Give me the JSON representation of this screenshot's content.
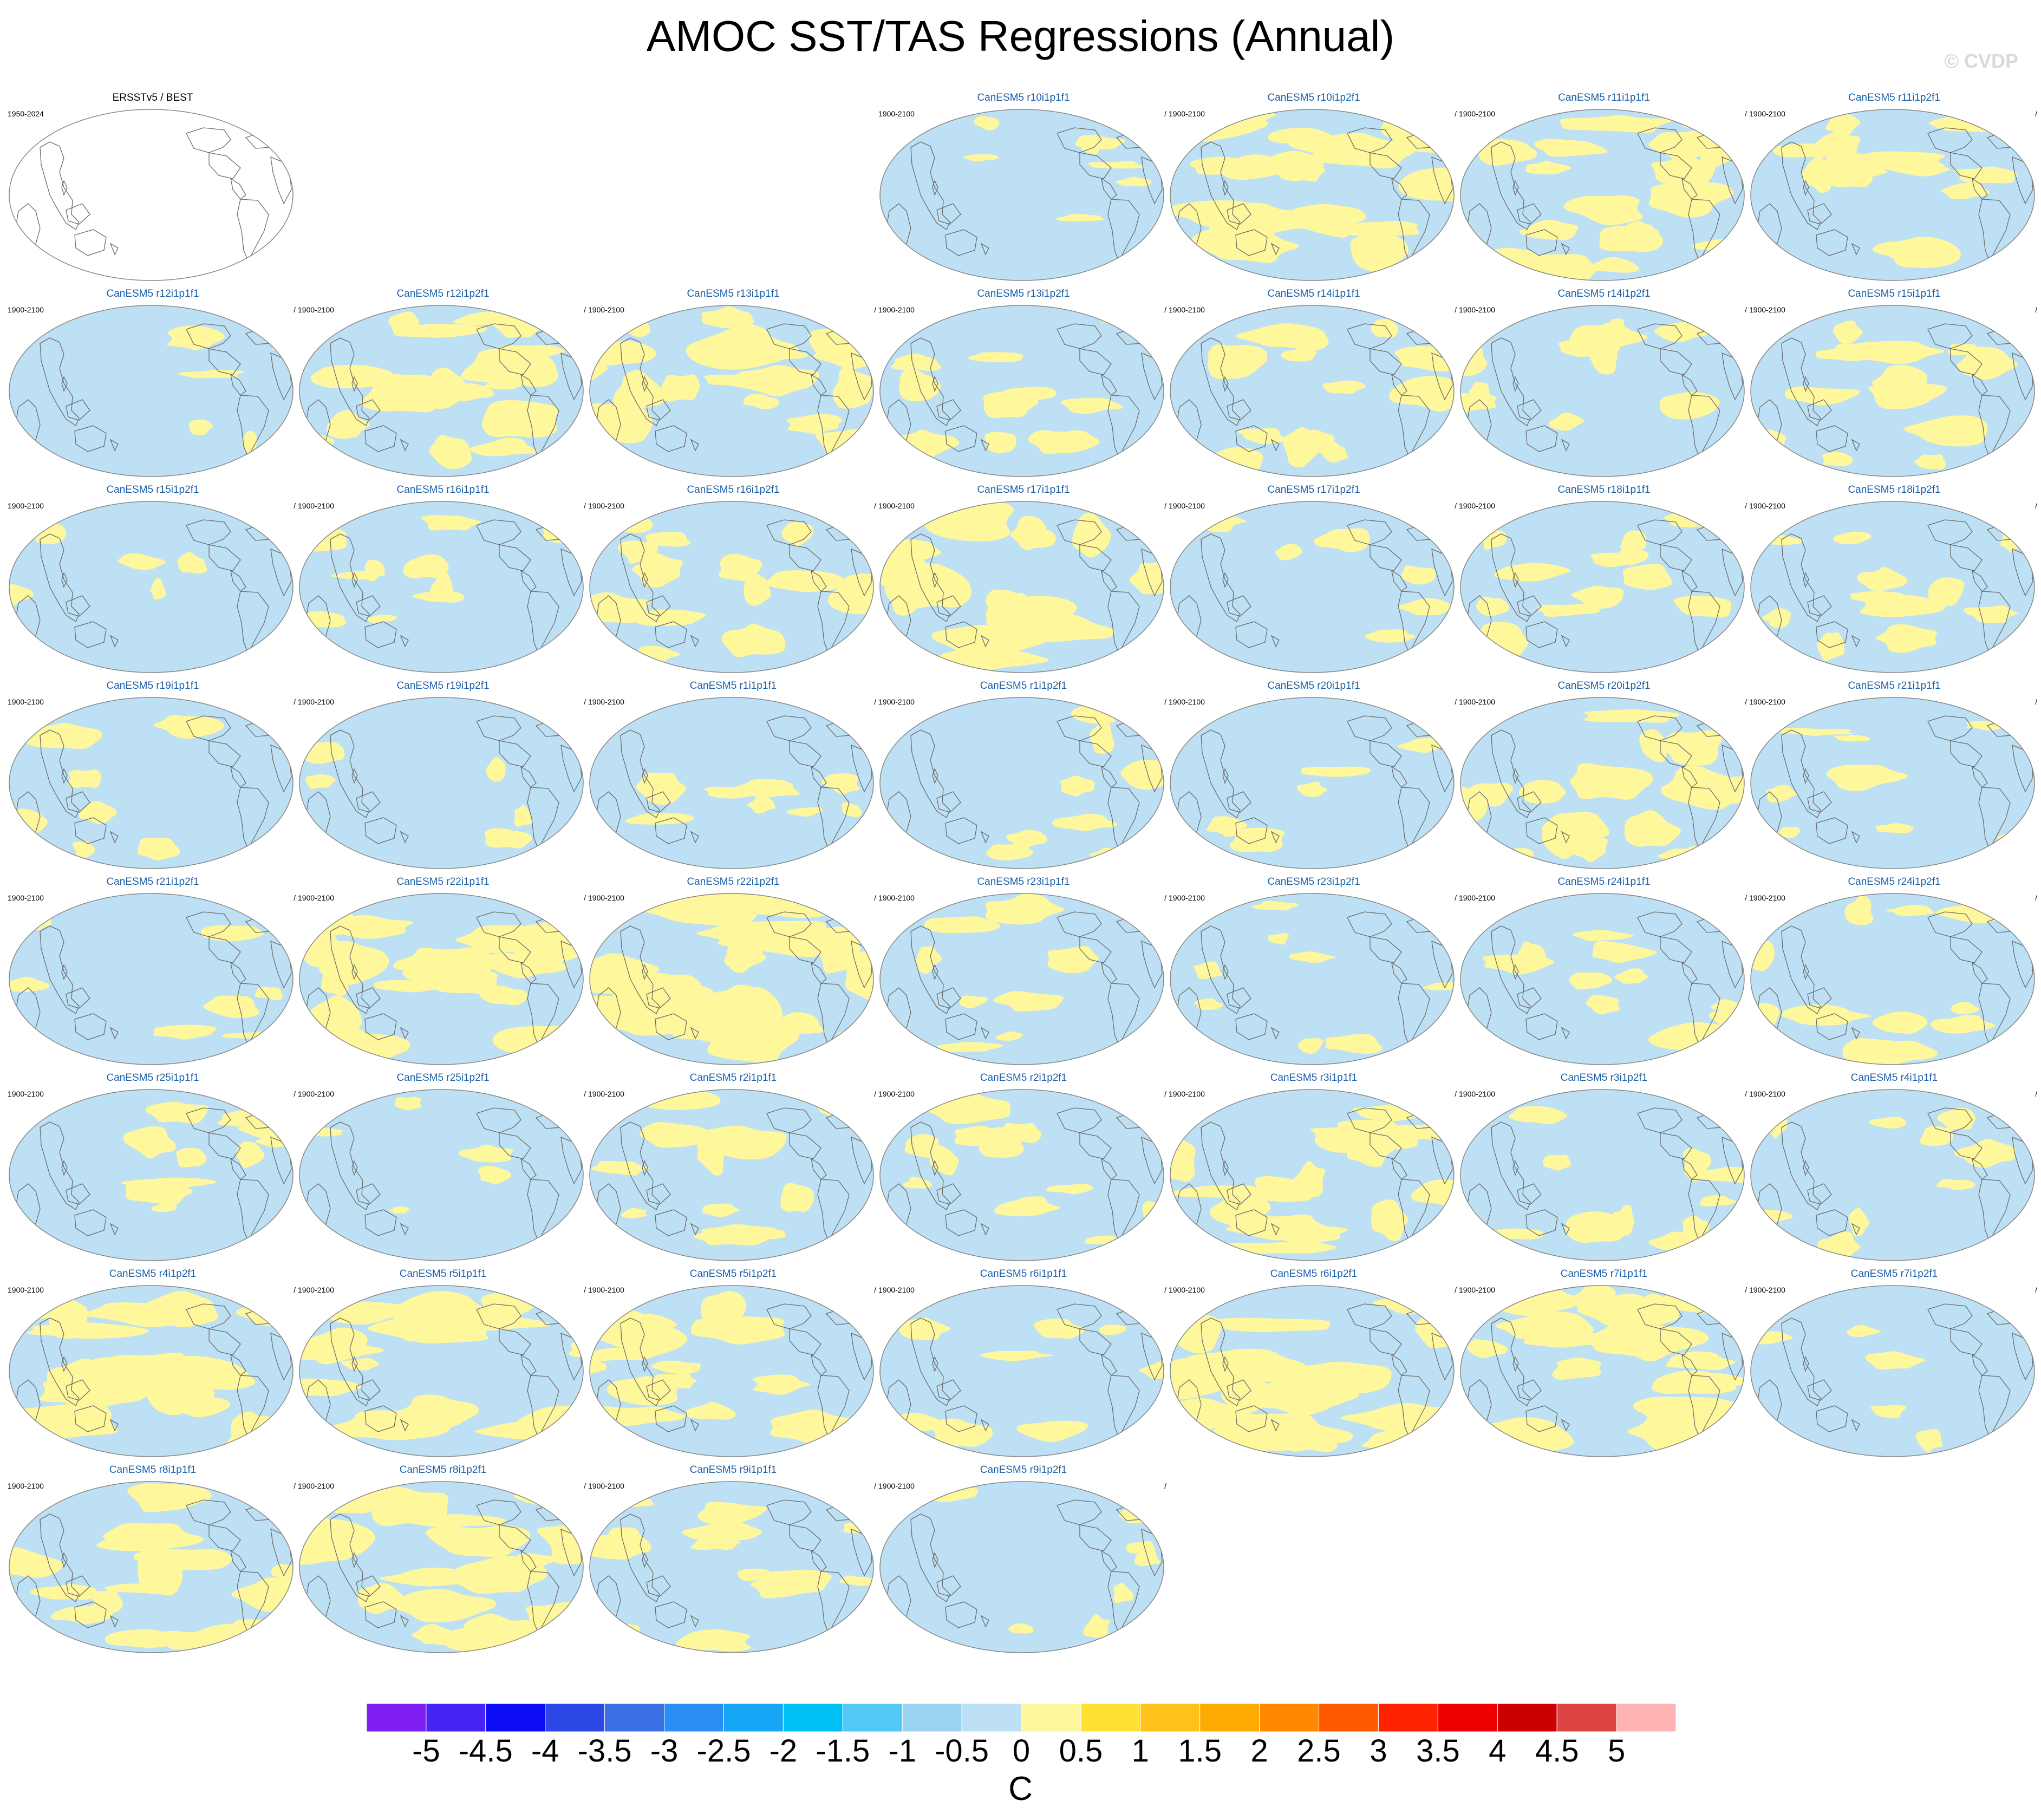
{
  "title": "AMOC SST/TAS Regressions (Annual)",
  "copyright": "© CVDP",
  "colors": {
    "model_title": "#1a5fa8",
    "obs_title": "#000000",
    "ocean_negative": "#bde0f5",
    "ocean_positive": "#fff79c",
    "coast": "#6a6a6a"
  },
  "observations": {
    "title": "ERSSTv5 / BEST",
    "years": "1950-2024"
  },
  "panels": [
    {
      "title": "CanESM5 r10i1p1f1",
      "years": "1900-2100",
      "slash": "/",
      "warm_fraction": 0.1
    },
    {
      "title": "CanESM5 r10i1p2f1",
      "years": "1900-2100",
      "slash": "/",
      "warm_fraction": 0.55
    },
    {
      "title": "CanESM5 r11i1p1f1",
      "years": "1900-2100",
      "slash": "/",
      "warm_fraction": 0.55
    },
    {
      "title": "CanESM5 r11i1p2f1",
      "years": "1900-2100",
      "slash": "/",
      "warm_fraction": 0.35
    },
    {
      "title": "CanESM5 r12i1p1f1",
      "years": "1900-2100",
      "slash": "/",
      "warm_fraction": 0.04
    },
    {
      "title": "CanESM5 r12i1p2f1",
      "years": "1900-2100",
      "slash": "/",
      "warm_fraction": 0.55
    },
    {
      "title": "CanESM5 r13i1p1f1",
      "years": "1900-2100",
      "slash": "/",
      "warm_fraction": 0.55
    },
    {
      "title": "CanESM5 r13i1p2f1",
      "years": "1900-2100",
      "slash": "/",
      "warm_fraction": 0.25
    },
    {
      "title": "CanESM5 r14i1p1f1",
      "years": "1900-2100",
      "slash": "/",
      "warm_fraction": 0.4
    },
    {
      "title": "CanESM5 r14i1p2f1",
      "years": "1900-2100",
      "slash": "/",
      "warm_fraction": 0.25
    },
    {
      "title": "CanESM5 r15i1p1f1",
      "years": "1900-2100",
      "slash": "/",
      "warm_fraction": 0.4
    },
    {
      "title": "CanESM5 r15i1p2f1",
      "years": "1900-2100",
      "slash": "/",
      "warm_fraction": 0.04
    },
    {
      "title": "CanESM5 r16i1p1f1",
      "years": "1900-2100",
      "slash": "/",
      "warm_fraction": 0.25
    },
    {
      "title": "CanESM5 r16i1p2f1",
      "years": "1900-2100",
      "slash": "/",
      "warm_fraction": 0.4
    },
    {
      "title": "CanESM5 r17i1p1f1",
      "years": "1900-2100",
      "slash": "/",
      "warm_fraction": 0.6
    },
    {
      "title": "CanESM5 r17i1p2f1",
      "years": "1900-2100",
      "slash": "/",
      "warm_fraction": 0.08
    },
    {
      "title": "CanESM5 r18i1p1f1",
      "years": "1900-2100",
      "slash": "/",
      "warm_fraction": 0.35
    },
    {
      "title": "CanESM5 r18i1p2f1",
      "years": "1900-2100",
      "slash": "/",
      "warm_fraction": 0.3
    },
    {
      "title": "CanESM5 r19i1p1f1",
      "years": "1900-2100",
      "slash": "/",
      "warm_fraction": 0.15
    },
    {
      "title": "CanESM5 r19i1p2f1",
      "years": "1900-2100",
      "slash": "/",
      "warm_fraction": 0.04
    },
    {
      "title": "CanESM5 r1i1p1f1",
      "years": "1900-2100",
      "slash": "/",
      "warm_fraction": 0.2
    },
    {
      "title": "CanESM5 r1i1p2f1",
      "years": "1900-2100",
      "slash": "/",
      "warm_fraction": 0.2
    },
    {
      "title": "CanESM5 r20i1p1f1",
      "years": "1900-2100",
      "slash": "/",
      "warm_fraction": 0.08
    },
    {
      "title": "CanESM5 r20i1p2f1",
      "years": "1900-2100",
      "slash": "/",
      "warm_fraction": 0.5
    },
    {
      "title": "CanESM5 r21i1p1f1",
      "years": "1900-2100",
      "slash": "/",
      "warm_fraction": 0.2
    },
    {
      "title": "CanESM5 r21i1p2f1",
      "years": "1900-2100",
      "slash": "/",
      "warm_fraction": 0.12
    },
    {
      "title": "CanESM5 r22i1p1f1",
      "years": "1900-2100",
      "slash": "/",
      "warm_fraction": 0.55
    },
    {
      "title": "CanESM5 r22i1p2f1",
      "years": "1900-2100",
      "slash": "/",
      "warm_fraction": 0.85
    },
    {
      "title": "CanESM5 r23i1p1f1",
      "years": "1900-2100",
      "slash": "/",
      "warm_fraction": 0.2
    },
    {
      "title": "CanESM5 r23i1p2f1",
      "years": "1900-2100",
      "slash": "/",
      "warm_fraction": 0.15
    },
    {
      "title": "CanESM5 r24i1p1f1",
      "years": "1900-2100",
      "slash": "/",
      "warm_fraction": 0.3
    },
    {
      "title": "CanESM5 r24i1p2f1",
      "years": "1900-2100",
      "slash": "/",
      "warm_fraction": 0.3
    },
    {
      "title": "CanESM5 r25i1p1f1",
      "years": "1900-2100",
      "slash": "/",
      "warm_fraction": 0.25
    },
    {
      "title": "CanESM5 r25i1p2f1",
      "years": "1900-2100",
      "slash": "/",
      "warm_fraction": 0.04
    },
    {
      "title": "CanESM5 r2i1p1f1",
      "years": "1900-2100",
      "slash": "/",
      "warm_fraction": 0.3
    },
    {
      "title": "CanESM5 r2i1p2f1",
      "years": "1900-2100",
      "slash": "/",
      "warm_fraction": 0.25
    },
    {
      "title": "CanESM5 r3i1p1f1",
      "years": "1900-2100",
      "slash": "/",
      "warm_fraction": 0.55
    },
    {
      "title": "CanESM5 r3i1p2f1",
      "years": "1900-2100",
      "slash": "/",
      "warm_fraction": 0.25
    },
    {
      "title": "CanESM5 r4i1p1f1",
      "years": "1900-2100",
      "slash": "/",
      "warm_fraction": 0.2
    },
    {
      "title": "CanESM5 r4i1p2f1",
      "years": "1900-2100",
      "slash": "/",
      "warm_fraction": 0.6
    },
    {
      "title": "CanESM5 r5i1p1f1",
      "years": "1900-2100",
      "slash": "/",
      "warm_fraction": 0.55
    },
    {
      "title": "CanESM5 r5i1p2f1",
      "years": "1900-2100",
      "slash": "/",
      "warm_fraction": 0.45
    },
    {
      "title": "CanESM5 r6i1p1f1",
      "years": "1900-2100",
      "slash": "/",
      "warm_fraction": 0.15
    },
    {
      "title": "CanESM5 r6i1p2f1",
      "years": "1900-2100",
      "slash": "/",
      "warm_fraction": 0.6
    },
    {
      "title": "CanESM5 r7i1p1f1",
      "years": "1900-2100",
      "slash": "/",
      "warm_fraction": 0.6
    },
    {
      "title": "CanESM5 r7i1p2f1",
      "years": "1900-2100",
      "slash": "/",
      "warm_fraction": 0.12
    },
    {
      "title": "CanESM5 r8i1p1f1",
      "years": "1900-2100",
      "slash": "/",
      "warm_fraction": 0.55
    },
    {
      "title": "CanESM5 r8i1p2f1",
      "years": "1900-2100",
      "slash": "/",
      "warm_fraction": 0.6
    },
    {
      "title": "CanESM5 r9i1p1f1",
      "years": "1900-2100",
      "slash": "/",
      "warm_fraction": 0.3
    },
    {
      "title": "CanESM5 r9i1p2f1",
      "years": "1900-2100",
      "slash": "/",
      "warm_fraction": 0.1
    }
  ],
  "colorbar": {
    "units": "C",
    "labels": [
      "-5",
      "-4.5",
      "-4",
      "-3.5",
      "-3",
      "-2.5",
      "-2",
      "-1.5",
      "-1",
      "-0.5",
      "0",
      "0.5",
      "1",
      "1.5",
      "2",
      "2.5",
      "3",
      "3.5",
      "4",
      "4.5",
      "5"
    ],
    "colors": [
      "#7e1ef0",
      "#4622f5",
      "#0c0cf5",
      "#2d48e6",
      "#3a6fe6",
      "#2b8ef5",
      "#16a6f5",
      "#00bff5",
      "#52c8f5",
      "#9bd4f0",
      "#bde0f5",
      "#fff79c",
      "#ffe133",
      "#ffc21a",
      "#ffaa00",
      "#ff8800",
      "#ff5a00",
      "#ff2200",
      "#ee0000",
      "#cc0000",
      "#dd4444",
      "#ffb3b3"
    ]
  }
}
